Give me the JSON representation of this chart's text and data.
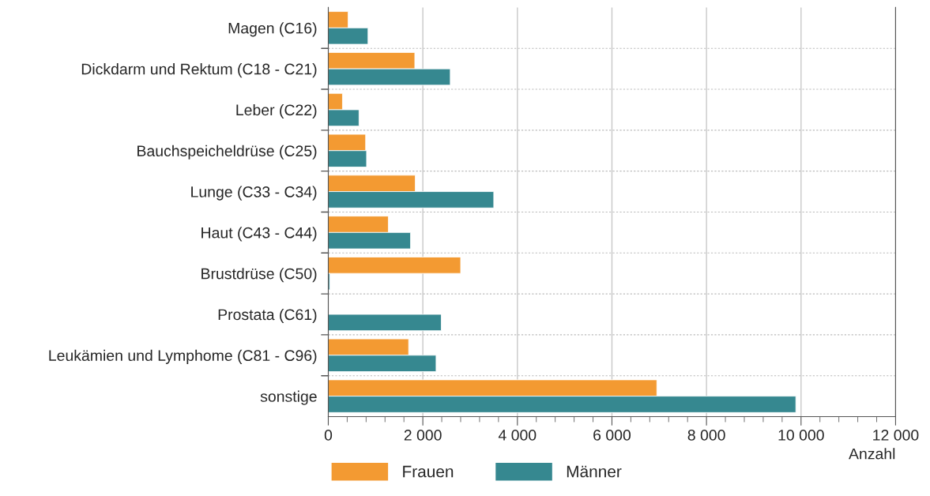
{
  "chart_data": {
    "type": "bar",
    "orientation": "horizontal",
    "xlabel": "Anzahl",
    "categories": [
      "Magen (C16)",
      "Dickdarm und Rektum (C18 - C21)",
      "Leber (C22)",
      "Bauchspeicheldrüse (C25)",
      "Lunge (C33 - C34)",
      "Haut (C43 - C44)",
      "Brustdrüse (C50)",
      "Prostata (C61)",
      "Leukämien und Lymphome (C81 - C96)",
      "sonstige"
    ],
    "series": [
      {
        "name": "Frauen",
        "color": "#f39a32",
        "values": [
          420,
          1830,
          300,
          790,
          1840,
          1270,
          2800,
          null,
          1700,
          6950
        ]
      },
      {
        "name": "Männer",
        "color": "#368890",
        "values": [
          840,
          2580,
          650,
          810,
          3500,
          1740,
          30,
          2390,
          2280,
          9890
        ]
      }
    ],
    "xlim": [
      0,
      12000
    ],
    "xticks": [
      {
        "value": 0,
        "label": "0"
      },
      {
        "value": 2000,
        "label": "2 000"
      },
      {
        "value": 4000,
        "label": "4 000"
      },
      {
        "value": 6000,
        "label": "6 000"
      },
      {
        "value": 8000,
        "label": "8 000"
      },
      {
        "value": 10000,
        "label": "10 000"
      },
      {
        "value": 12000,
        "label": "12 000"
      }
    ],
    "grid": true,
    "legend": "bottom"
  }
}
